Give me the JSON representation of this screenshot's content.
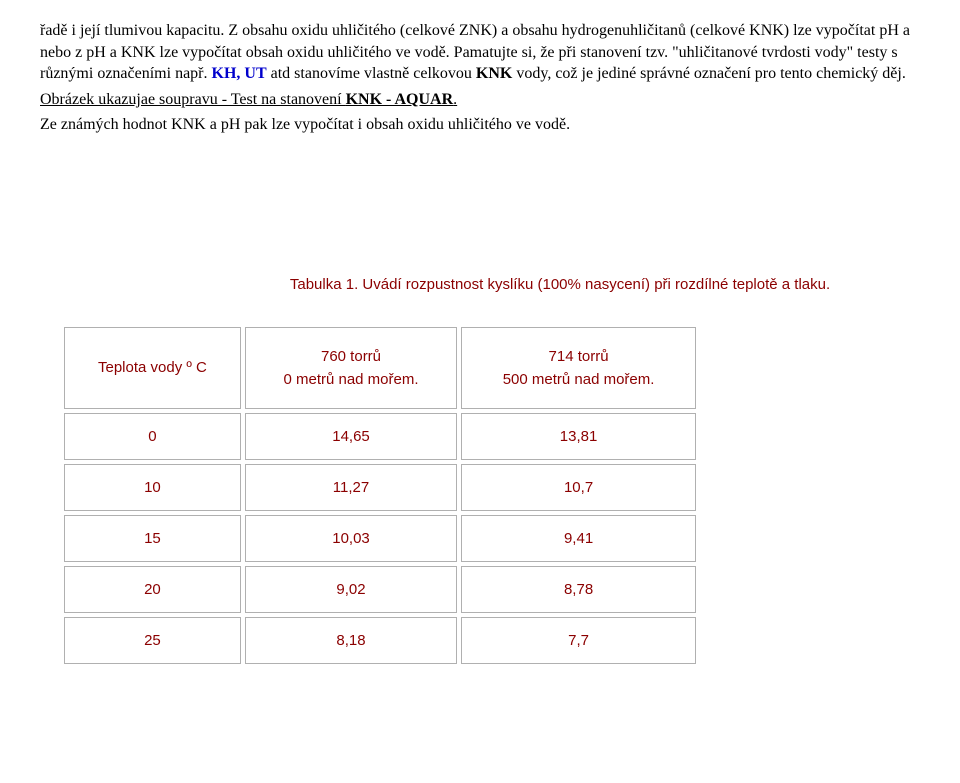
{
  "paragraph": {
    "t1": "řadě i její tlumivou kapacitu. Z obsahu oxidu uhličitého (celkové ZNK) a obsahu hydrogenuhličitanů (celkové KNK) lze vypočítat pH a nebo z pH a KNK lze vypočítat obsah oxidu uhličitého ve vodě. Pamatujte si, že při stanovení tzv. \"uhličitanové tvrdosti vody\" testy s různými označeními např. ",
    "t2": "KH, UT",
    "t3": " atd stanovíme vlastně celkovou ",
    "t4": "KNK",
    "t5": " vody, což je jediné správné označení pro tento chemický děj.",
    "t6": "Obrázek ukazujae soupravu - Test na stanovení ",
    "t7": "KNK - AQUAR",
    "t8": ".",
    "t9": "Ze známých hodnot KNK a pH pak lze vypočítat i obsah oxidu uhličitého ve vodě."
  },
  "table": {
    "caption": "Tabulka 1. Uvádí rozpustnost kyslíku (100% nasycení) při rozdílné teplotě a tlaku.",
    "header": {
      "col1": "Teplota vody º C",
      "col2_top": "760 torrů",
      "col2_bot": "0 metrů nad mořem.",
      "col3_top": "714 torrů",
      "col3_bot": "500 metrů nad mořem."
    },
    "rows": [
      {
        "c1": "0",
        "c2": "14,65",
        "c3": "13,81"
      },
      {
        "c1": "10",
        "c2": "11,27",
        "c3": "10,7"
      },
      {
        "c1": "15",
        "c2": "10,03",
        "c3": "9,41"
      },
      {
        "c1": "20",
        "c2": "9,02",
        "c3": "8,78"
      },
      {
        "c1": "25",
        "c2": "8,18",
        "c3": "7,7"
      }
    ]
  }
}
